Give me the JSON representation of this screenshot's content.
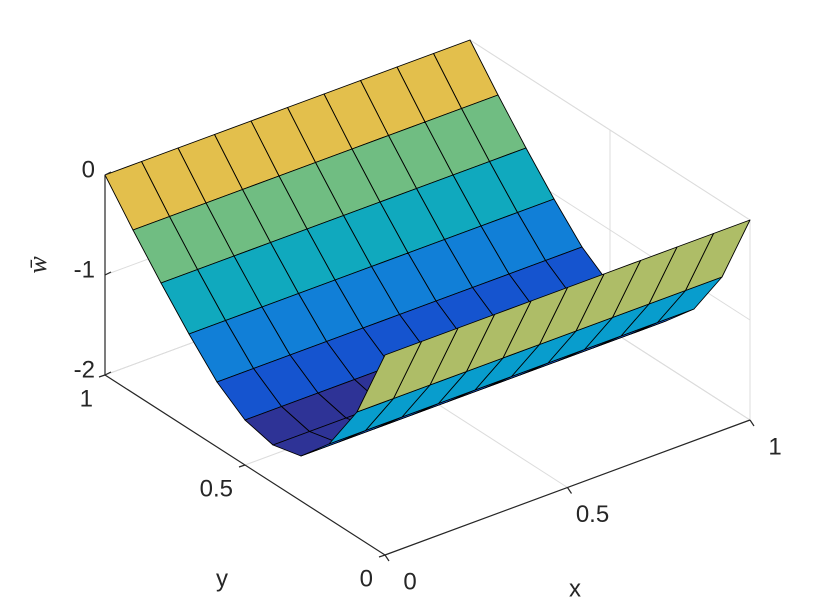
{
  "chart_data": {
    "type": "surface",
    "x": [
      0,
      0.1,
      0.2,
      0.3,
      0.4,
      0.5,
      0.6,
      0.7,
      0.8,
      0.9,
      1
    ],
    "y": [
      0,
      0.1,
      0.2,
      0.3,
      0.4,
      0.5,
      0.6,
      0.7,
      0.8,
      0.9,
      1
    ],
    "z": [
      [
        0,
        0,
        0,
        0,
        0,
        0,
        0,
        0,
        0,
        0,
        0
      ],
      [
        -0.75,
        -0.75,
        -0.75,
        -0.75,
        -0.75,
        -0.75,
        -0.75,
        -0.75,
        -0.75,
        -0.75,
        -0.75
      ],
      [
        -1.25,
        -1.25,
        -1.25,
        -1.25,
        -1.25,
        -1.25,
        -1.25,
        -1.25,
        -1.25,
        -1.25,
        -1.25
      ],
      [
        -1.55,
        -1.55,
        -1.55,
        -1.55,
        -1.55,
        -1.55,
        -1.55,
        -1.55,
        -1.55,
        -1.55,
        -1.55
      ],
      [
        -1.62,
        -1.62,
        -1.62,
        -1.62,
        -1.62,
        -1.62,
        -1.62,
        -1.62,
        -1.62,
        -1.62,
        -1.62
      ],
      [
        -1.55,
        -1.55,
        -1.55,
        -1.55,
        -1.55,
        -1.55,
        -1.55,
        -1.55,
        -1.55,
        -1.55,
        -1.55
      ],
      [
        -1.35,
        -1.35,
        -1.35,
        -1.35,
        -1.35,
        -1.35,
        -1.35,
        -1.35,
        -1.35,
        -1.35,
        -1.35
      ],
      [
        -1.05,
        -1.05,
        -1.05,
        -1.05,
        -1.05,
        -1.05,
        -1.05,
        -1.05,
        -1.05,
        -1.05,
        -1.05
      ],
      [
        -0.72,
        -0.72,
        -0.72,
        -0.72,
        -0.72,
        -0.72,
        -0.72,
        -0.72,
        -0.72,
        -0.72,
        -0.72
      ],
      [
        -0.37,
        -0.37,
        -0.37,
        -0.37,
        -0.37,
        -0.37,
        -0.37,
        -0.37,
        -0.37,
        -0.37,
        -0.37
      ],
      [
        0,
        0,
        0,
        0,
        0,
        0,
        0,
        0,
        0,
        0,
        0
      ]
    ],
    "xlim": [
      0,
      1
    ],
    "ylim": [
      0,
      1
    ],
    "zlim": [
      -2,
      0
    ],
    "xticks": [
      0,
      0.5,
      1
    ],
    "yticks": [
      0,
      0.5,
      1
    ],
    "zticks": [
      -2,
      -1,
      0
    ],
    "xlabel": "x",
    "ylabel": "y",
    "zlabel": "w̄",
    "colormap": "parula",
    "edgecolor": "#000000",
    "grid": true
  }
}
